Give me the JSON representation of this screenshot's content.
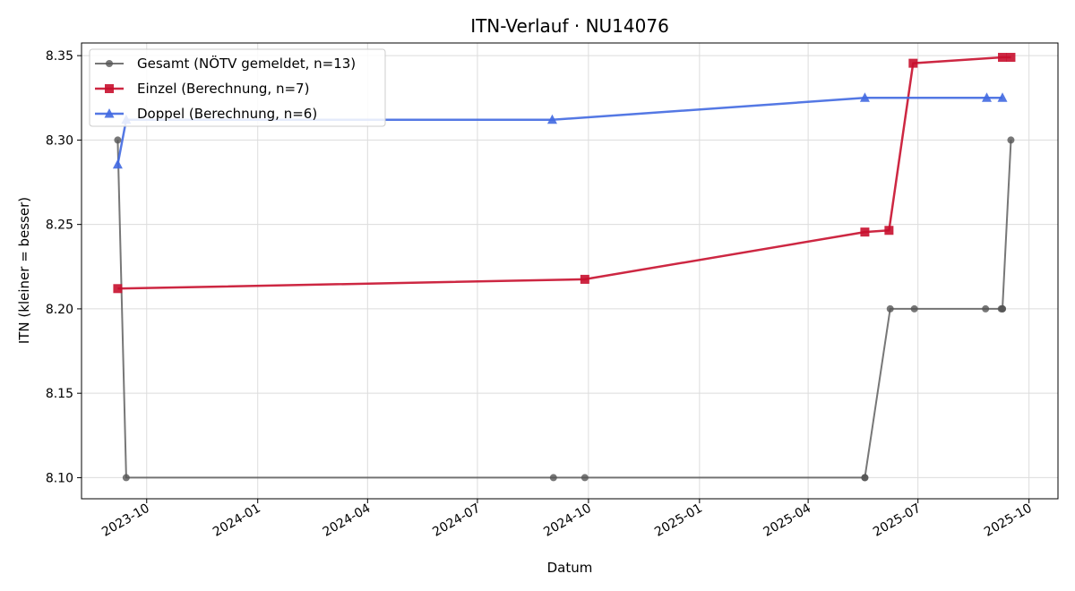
{
  "chart_data": {
    "type": "line",
    "title": "ITN-Verlauf · NU14076",
    "xlabel": "Datum",
    "ylabel": "ITN  (kleiner = besser)",
    "x_axis_type": "date",
    "xlim": [
      "2023-08-08",
      "2025-10-25"
    ],
    "ylim": [
      8.0875,
      8.3575
    ],
    "x_ticks": [
      "2023-10-01",
      "2024-01-01",
      "2024-04-01",
      "2024-07-01",
      "2024-10-01",
      "2025-01-01",
      "2025-04-01",
      "2025-07-01",
      "2025-10-01"
    ],
    "x_tick_labels": [
      "2023-10",
      "2024-01",
      "2024-04",
      "2024-07",
      "2024-10",
      "2025-01",
      "2025-04",
      "2025-07",
      "2025-10"
    ],
    "y_ticks": [
      8.1,
      8.15,
      8.2,
      8.25,
      8.3,
      8.35
    ],
    "y_tick_labels": [
      "8.10",
      "8.15",
      "8.20",
      "8.25",
      "8.30",
      "8.35"
    ],
    "grid": true,
    "legend_position": "top-left",
    "series": [
      {
        "name": "Gesamt (NÖTV gemeldet, n=13)",
        "color": "#555555",
        "marker": "circle",
        "points": [
          {
            "x": "2023-09-07",
            "y": 8.3
          },
          {
            "x": "2023-09-14",
            "y": 8.1
          },
          {
            "x": "2024-09-02",
            "y": 8.1
          },
          {
            "x": "2024-09-28",
            "y": 8.1
          },
          {
            "x": "2025-05-18",
            "y": 8.1
          },
          {
            "x": "2025-05-18",
            "y": 8.1
          },
          {
            "x": "2025-06-08",
            "y": 8.2
          },
          {
            "x": "2025-06-28",
            "y": 8.2
          },
          {
            "x": "2025-08-26",
            "y": 8.2
          },
          {
            "x": "2025-09-08",
            "y": 8.2
          },
          {
            "x": "2025-09-09",
            "y": 8.2
          },
          {
            "x": "2025-09-09",
            "y": 8.2
          },
          {
            "x": "2025-09-16",
            "y": 8.3
          }
        ]
      },
      {
        "name": "Einzel (Berechnung, n=7)",
        "color": "#c8102e",
        "marker": "square",
        "points": [
          {
            "x": "2023-09-07",
            "y": 8.212
          },
          {
            "x": "2024-09-28",
            "y": 8.2175
          },
          {
            "x": "2025-05-18",
            "y": 8.2455
          },
          {
            "x": "2025-06-07",
            "y": 8.2465
          },
          {
            "x": "2025-06-27",
            "y": 8.3455
          },
          {
            "x": "2025-09-09",
            "y": 8.349
          },
          {
            "x": "2025-09-16",
            "y": 8.349
          }
        ]
      },
      {
        "name": "Doppel (Berechnung, n=6)",
        "color": "#4169e1",
        "marker": "triangle",
        "points": [
          {
            "x": "2023-09-07",
            "y": 8.2855
          },
          {
            "x": "2023-09-14",
            "y": 8.312
          },
          {
            "x": "2024-09-01",
            "y": 8.312
          },
          {
            "x": "2025-05-18",
            "y": 8.325
          },
          {
            "x": "2025-08-27",
            "y": 8.325
          },
          {
            "x": "2025-09-09",
            "y": 8.325
          }
        ]
      }
    ]
  }
}
